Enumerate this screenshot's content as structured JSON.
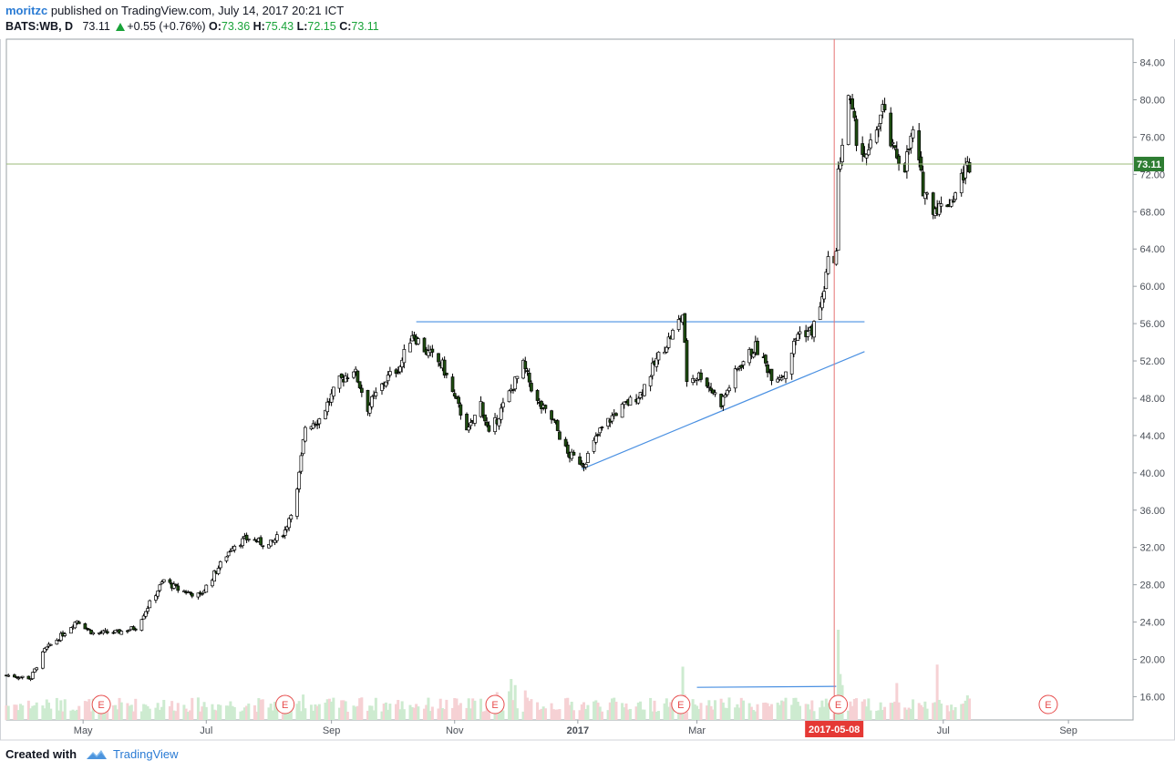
{
  "header": {
    "author": "moritzc",
    "published_text": " published on TradingView.com, July 14, 2017 20:21 ICT",
    "symbol": "BATS:WB, D",
    "last": "73.11",
    "change": "+0.55 (+0.76%)",
    "o_label": "O:",
    "o_value": "73.36",
    "h_label": "H:",
    "h_value": "75.43",
    "l_label": "L:",
    "l_value": "72.15",
    "c_label": "C:",
    "c_value": "73.11"
  },
  "footer": {
    "created_with": "Created with",
    "brand": "TradingView"
  },
  "colors": {
    "up": "#19a339",
    "candle_body": "#1e4d10",
    "candle_outline": "#000000",
    "trendline": "#4a90e2",
    "crosshair": "#e57373",
    "price_line": "#9bbb7a",
    "price_badge": "#2e7d32",
    "date_badge": "#e53935",
    "vol_up": "#cdebd0",
    "vol_down": "#f6d1d4",
    "earnings": "#e74c4c"
  },
  "chart_data": {
    "type": "candlestick",
    "symbol": "BATS:WB",
    "interval": "D",
    "y_axis": {
      "range": [
        13.5,
        86.5
      ],
      "ticks": [
        "16.00",
        "20.00",
        "24.00",
        "28.00",
        "32.00",
        "36.00",
        "40.00",
        "44.00",
        "48.00",
        "52.00",
        "56.00",
        "60.00",
        "64.00",
        "68.00",
        "72.00",
        "76.00",
        "80.00",
        "84.00"
      ]
    },
    "x_axis": {
      "labels": [
        {
          "text": "May",
          "date": "2016-05-01"
        },
        {
          "text": "Jul",
          "date": "2016-07-01"
        },
        {
          "text": "Sep",
          "date": "2016-09-01"
        },
        {
          "text": "Nov",
          "date": "2016-11-01"
        },
        {
          "text": "2017",
          "date": "2017-01-01",
          "bold": true
        },
        {
          "text": "Mar",
          "date": "2017-03-01"
        },
        {
          "text": "Jul",
          "date": "2017-07-01"
        },
        {
          "text": "Sep",
          "date": "2017-09-01"
        }
      ]
    },
    "price_path": [
      [
        "2016-03-24",
        18.3
      ],
      [
        "2016-04-05",
        18.0
      ],
      [
        "2016-04-12",
        21.0
      ],
      [
        "2016-04-20",
        22.5
      ],
      [
        "2016-04-28",
        24.2
      ],
      [
        "2016-05-06",
        22.8
      ],
      [
        "2016-05-18",
        22.9
      ],
      [
        "2016-05-27",
        23.4
      ],
      [
        "2016-06-03",
        26.0
      ],
      [
        "2016-06-10",
        28.5
      ],
      [
        "2016-06-17",
        27.5
      ],
      [
        "2016-06-28",
        26.8
      ],
      [
        "2016-07-06",
        29.5
      ],
      [
        "2016-07-14",
        32.2
      ],
      [
        "2016-07-22",
        33.0
      ],
      [
        "2016-08-01",
        32.2
      ],
      [
        "2016-08-09",
        33.8
      ],
      [
        "2016-08-15",
        38.0
      ],
      [
        "2016-08-19",
        45.0
      ],
      [
        "2016-08-26",
        45.8
      ],
      [
        "2016-09-05",
        49.8
      ],
      [
        "2016-09-12",
        51.2
      ],
      [
        "2016-09-19",
        47.0
      ],
      [
        "2016-09-28",
        50.0
      ],
      [
        "2016-10-05",
        51.5
      ],
      [
        "2016-10-11",
        55.0
      ],
      [
        "2016-10-18",
        53.0
      ],
      [
        "2016-10-26",
        51.5
      ],
      [
        "2016-11-01",
        48.0
      ],
      [
        "2016-11-08",
        44.5
      ],
      [
        "2016-11-14",
        47.5
      ],
      [
        "2016-11-18",
        44.0
      ],
      [
        "2016-11-28",
        48.5
      ],
      [
        "2016-12-05",
        51.5
      ],
      [
        "2016-12-12",
        47.5
      ],
      [
        "2016-12-20",
        45.5
      ],
      [
        "2016-12-27",
        42.0
      ],
      [
        "2017-01-04",
        41.0
      ],
      [
        "2017-01-12",
        44.5
      ],
      [
        "2017-01-20",
        46.5
      ],
      [
        "2017-02-01",
        48.5
      ],
      [
        "2017-02-10",
        52.5
      ],
      [
        "2017-02-17",
        55.0
      ],
      [
        "2017-02-22",
        57.0
      ],
      [
        "2017-02-24",
        50.0
      ],
      [
        "2017-03-03",
        50.5
      ],
      [
        "2017-03-13",
        47.5
      ],
      [
        "2017-03-22",
        51.5
      ],
      [
        "2017-03-30",
        53.5
      ],
      [
        "2017-04-07",
        50.5
      ],
      [
        "2017-04-13",
        50.5
      ],
      [
        "2017-04-20",
        55.0
      ],
      [
        "2017-04-27",
        55.2
      ],
      [
        "2017-05-02",
        58.5
      ],
      [
        "2017-05-05",
        62.5
      ],
      [
        "2017-05-09",
        63.5
      ],
      [
        "2017-05-10",
        72.0
      ],
      [
        "2017-05-15",
        80.5
      ],
      [
        "2017-05-19",
        76.0
      ],
      [
        "2017-05-24",
        73.5
      ],
      [
        "2017-06-01",
        79.0
      ],
      [
        "2017-06-06",
        74.5
      ],
      [
        "2017-06-12",
        73.0
      ],
      [
        "2017-06-16",
        76.5
      ],
      [
        "2017-06-21",
        70.5
      ],
      [
        "2017-06-26",
        68.5
      ],
      [
        "2017-06-30",
        68.5
      ],
      [
        "2017-07-06",
        69.5
      ],
      [
        "2017-07-12",
        72.6
      ],
      [
        "2017-07-14",
        73.11
      ]
    ],
    "volume_heights_relative": "light green = up day, light pink = down day",
    "volume_spikes": [
      [
        "2016-04-20",
        0.48
      ],
      [
        "2016-08-18",
        0.62
      ],
      [
        "2016-09-16",
        0.55
      ],
      [
        "2016-11-22",
        0.68
      ],
      [
        "2016-11-28",
        0.7
      ],
      [
        "2016-11-29",
        1.0
      ],
      [
        "2016-12-01",
        0.85
      ],
      [
        "2016-12-06",
        0.72
      ],
      [
        "2017-02-22",
        1.3
      ],
      [
        "2017-02-23",
        0.62
      ],
      [
        "2017-05-09",
        0.5
      ],
      [
        "2017-05-10",
        2.2
      ],
      [
        "2017-05-11",
        1.12
      ],
      [
        "2017-05-12",
        0.85
      ],
      [
        "2017-06-08",
        0.9
      ],
      [
        "2017-06-28",
        1.35
      ],
      [
        "2017-07-13",
        0.6
      ]
    ],
    "current_price": 73.11,
    "current_price_label": "73.11",
    "crosshair_date": "2017-05-08",
    "crosshair_label": "2017-05-08",
    "trendlines": [
      {
        "name": "resistance",
        "from": [
          "2016-10-13",
          56.2
        ],
        "to": [
          "2017-05-23",
          56.2
        ]
      },
      {
        "name": "ascending-support",
        "from": [
          "2017-01-03",
          40.4
        ],
        "to": [
          "2017-05-23",
          53.0
        ]
      },
      {
        "name": "volume-line",
        "from": [
          "2017-03-01",
          17.0
        ],
        "to": [
          "2017-05-09",
          17.1
        ]
      }
    ],
    "earnings_markers": [
      {
        "date": "2016-05-10",
        "label": "E"
      },
      {
        "date": "2016-08-09",
        "label": "E"
      },
      {
        "date": "2016-11-21",
        "label": "E"
      },
      {
        "date": "2017-02-21",
        "label": "E"
      },
      {
        "date": "2017-05-10",
        "label": "E"
      },
      {
        "date": "2017-08-22",
        "label": "E"
      }
    ]
  }
}
